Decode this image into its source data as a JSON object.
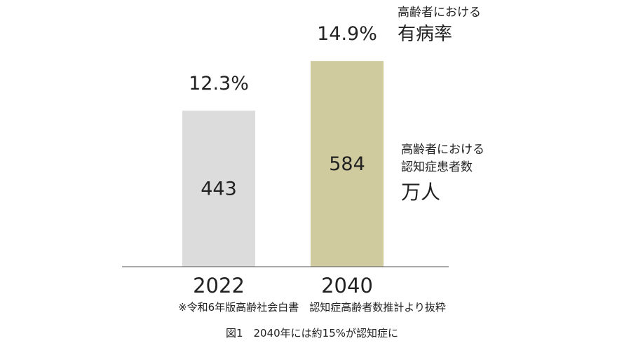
{
  "chart_data": {
    "type": "bar",
    "categories": [
      "2022",
      "2040"
    ],
    "series": [
      {
        "values": [
          443,
          584
        ]
      }
    ],
    "rates": [
      "12.3%",
      "14.9%"
    ],
    "bar_colors": [
      "#dcdcdc",
      "#cfcb9e"
    ],
    "axis_color": "#555555",
    "ylim": [
      0,
      630
    ]
  },
  "labels": {
    "rate_small": "高齢者における",
    "rate_big": "有病率",
    "count_line1": "高齢者における",
    "count_line2": "認知症患者数",
    "count_big": "万人"
  },
  "source_note": "※令和6年版高齢社会白書　認知症高齢者数推計より抜粋",
  "figure_caption": "図1　2040年には約15%が認知症に"
}
